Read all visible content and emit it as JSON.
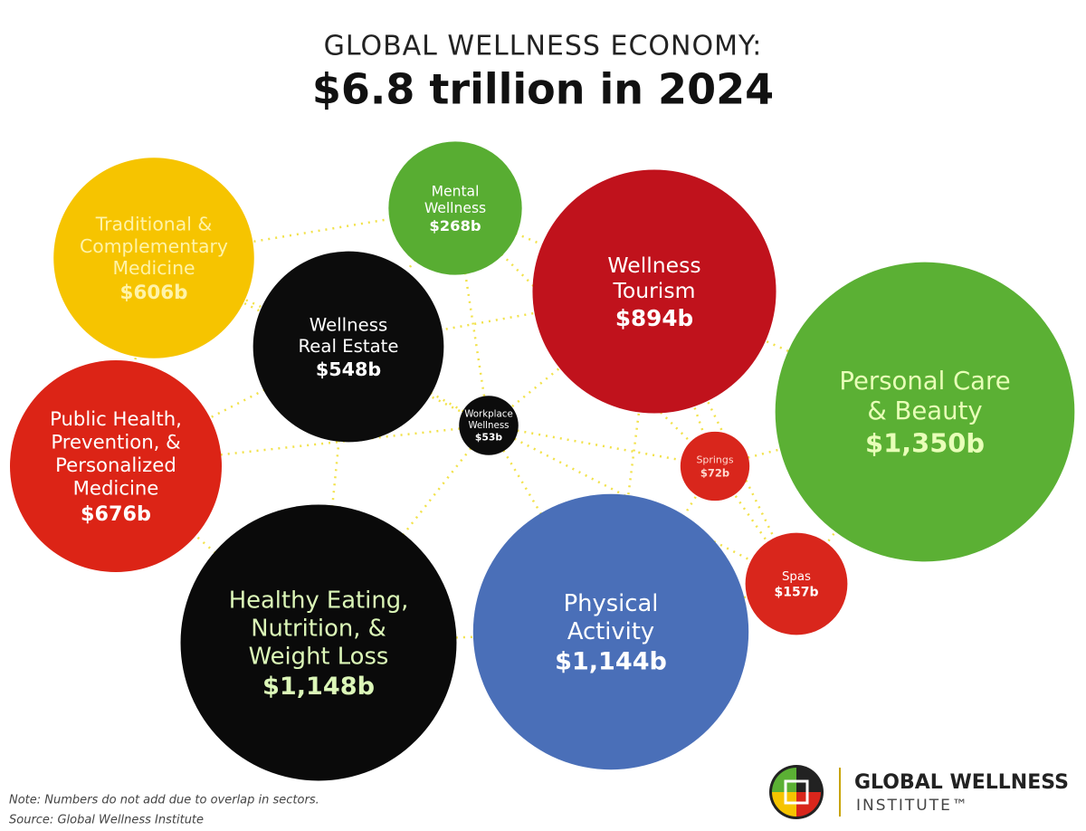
{
  "chart_data": {
    "type": "bubble",
    "title": "GLOBAL WELLNESS ECONOMY:",
    "subtitle": "$6.8 trillion in 2024",
    "categories": [
      "Traditional &\nComplementary\nMedicine",
      "Mental\nWellness",
      "Wellness\nTourism",
      "Personal Care\n& Beauty",
      "Wellness\nReal Estate",
      "Workplace\nWellness",
      "Springs",
      "Public Health,\nPrevention, &\nPersonalized\nMedicine",
      "Healthy Eating,\nNutrition, &\nWeight Loss",
      "Physical\nActivity",
      "Spas"
    ],
    "values": [
      606,
      268,
      894,
      1350,
      548,
      53,
      72,
      676,
      1148,
      1144,
      157
    ],
    "value_labels": [
      "$606b",
      "$268b",
      "$894b",
      "$1,350b",
      "$548b",
      "$53b",
      "$72b",
      "$676b",
      "$1,148b",
      "$1,144b",
      "$157b"
    ],
    "colors": [
      "#f6c400",
      "#58ad32",
      "#c0121c",
      "#5bb034",
      "#0c0c0c",
      "#0c0c0c",
      "#d9261c",
      "#dc2416",
      "#0a0a0a",
      "#4a6fb8",
      "#d9261c"
    ],
    "label_colors": [
      "#fff3a8",
      "#ffffff",
      "#ffffff",
      "#e8ffb8",
      "#ffffff",
      "#ffffff",
      "#ffd9d0",
      "#ffffff",
      "#dcf7b8",
      "#ffffff",
      "#ffffff"
    ],
    "note": "Note: Numbers do not add due to overlap in sectors.",
    "source": "Source: Global Wellness Institute",
    "logo_name": "GLOBAL WELLNESS",
    "logo_sub": "INSTITUTE™"
  }
}
